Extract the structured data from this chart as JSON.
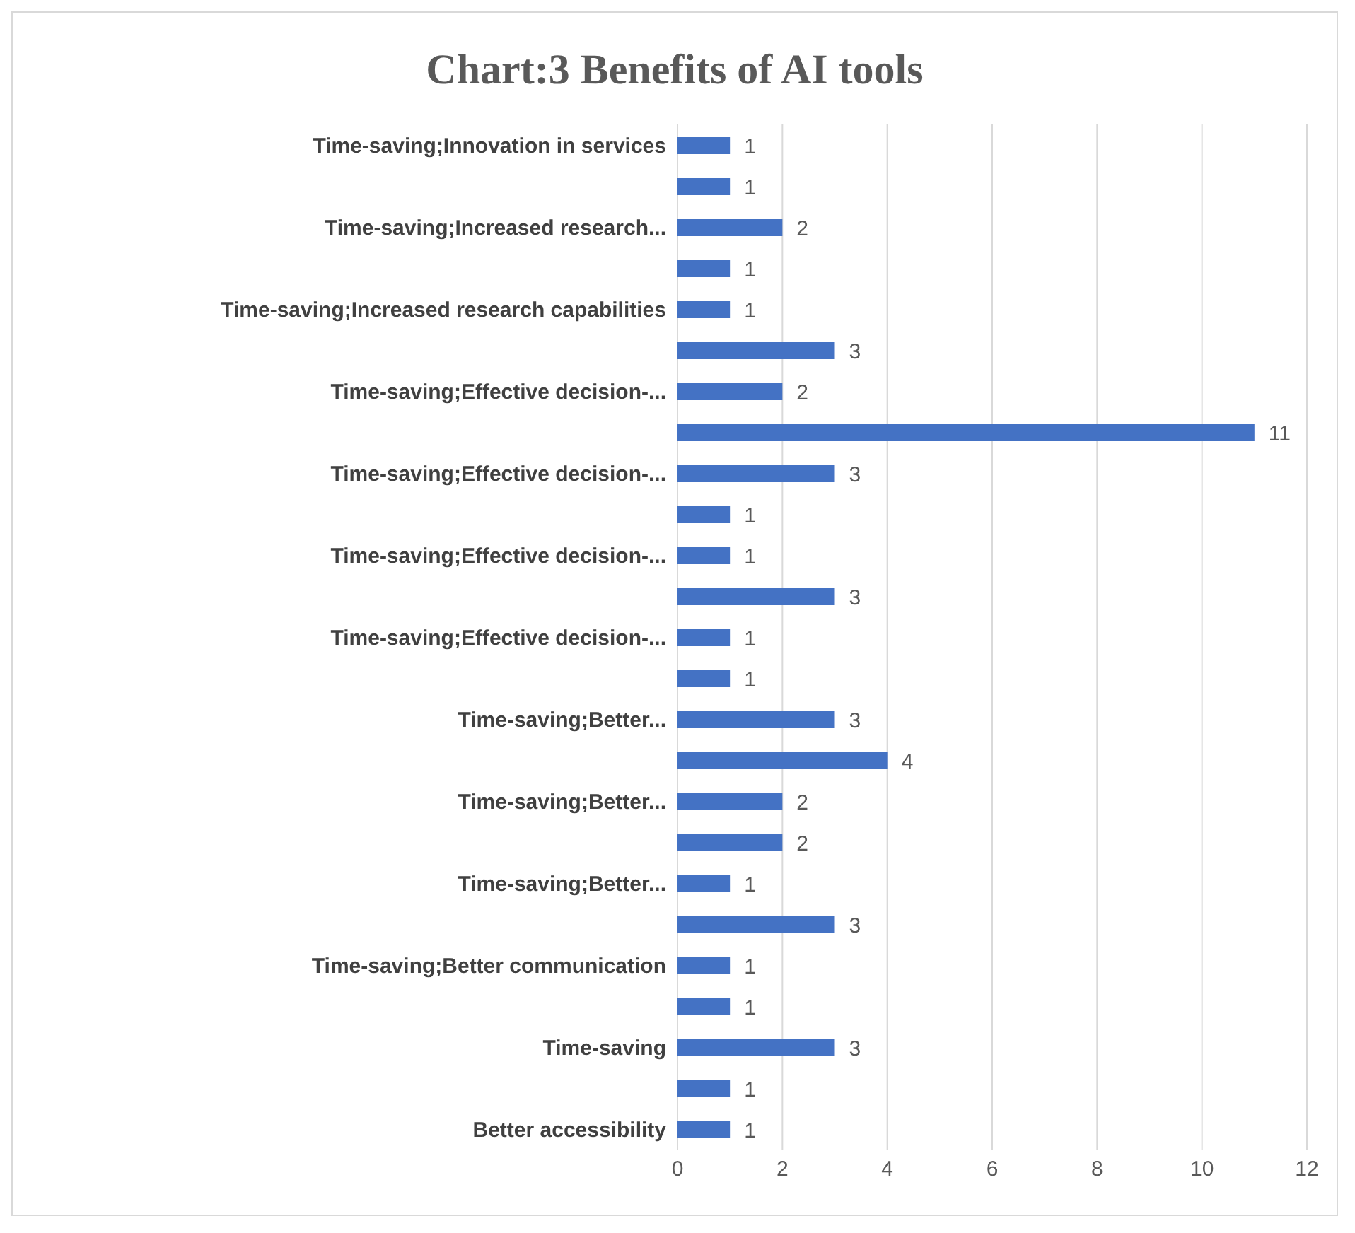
{
  "chart_data": {
    "type": "bar",
    "orientation": "horizontal",
    "title": "Chart:3 Benefits of AI tools",
    "categories": [
      "Time-saving;Innovation in services",
      null,
      "Time-saving;Increased research...",
      null,
      "Time-saving;Increased research capabilities",
      null,
      "Time-saving;Effective decision-...",
      null,
      "Time-saving;Effective decision-...",
      null,
      "Time-saving;Effective decision-...",
      null,
      "Time-saving;Effective decision-...",
      null,
      "Time-saving;Better...",
      null,
      "Time-saving;Better...",
      null,
      "Time-saving;Better...",
      null,
      "Time-saving;Better communication",
      null,
      "Time-saving",
      null,
      "Better accessibility"
    ],
    "values": [
      1,
      1,
      2,
      1,
      1,
      3,
      2,
      11,
      3,
      1,
      1,
      3,
      1,
      1,
      3,
      4,
      2,
      2,
      1,
      3,
      1,
      1,
      3,
      1,
      1
    ],
    "color": "#4472c4",
    "xlim": [
      0,
      12
    ],
    "xticks": [
      0,
      2,
      4,
      6,
      8,
      10,
      12
    ],
    "grid": "x",
    "data_labels": true
  }
}
